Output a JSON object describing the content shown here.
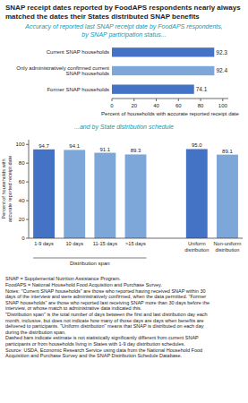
{
  "chart_data": [
    {
      "type": "bar",
      "orientation": "horizontal",
      "title": "SNAP receipt dates reported by FoodAPS respondents nearly always matched the dates their States distributed SNAP benefits",
      "subtitle": [
        "Accuracy of reported last SNAP receipt date by FoodAPS respondents,",
        "by SNAP participation status..."
      ],
      "categories": [
        "Current SNAP households",
        "Only administratively confirmed current\nSNAP households",
        "Former SNAP households"
      ],
      "values": [
        92.3,
        92.4,
        74.1
      ],
      "colors": [
        "#4472c4",
        "#7da6d9",
        "#4472c4"
      ],
      "xlabel": "Percent of households with accurate reported receipt date",
      "xlim": [
        0,
        105
      ],
      "xticks": [
        0,
        20,
        40,
        60,
        80,
        100
      ],
      "data_labels": true
    },
    {
      "type": "bar",
      "subtitle": "...and by State distribution schedule",
      "categories": [
        "1-9 days",
        "10 days",
        "11-15 days",
        ">15 days",
        "Uniform\ndistribution",
        "Non-uniform\ndistribution"
      ],
      "values": [
        94.7,
        94.1,
        91.1,
        89.3,
        95.0,
        89.1
      ],
      "value_labels": [
        "94.7",
        "94.1",
        "91.1",
        "89.3",
        "95.0",
        "89.1"
      ],
      "colors": [
        "#4472c4",
        "#7da6d9",
        "#7da6d9",
        "#7da6d9",
        "#4472c4",
        "#7da6d9"
      ],
      "ylabel": "Percent of households with accurate reported receipt date",
      "ylim": [
        0,
        105
      ],
      "yticks": [
        0,
        20,
        40,
        60,
        80,
        100
      ],
      "data_labels": true,
      "annotations": [
        "Distribution span"
      ],
      "footnote": "SNAP = Supplemental Nutrition Assistance Program.\nFoodAPS = National Household Food Acquisition and Purchase Survey.\nNotes: \"Current SNAP households\" are those who reported having received SNAP within 30\ndays of the interview and were administratively confirmed, when the data permitted. \"Former\nSNAP households\" are those who reported last receiving SNAP more than 30 days before the\ninterview, or whose match to administrative data indicated this.\n\"Distribution span\" is the total number of days between the first and last distribution day each\nmonth, inclusive, but does not indicate how many of those days are days when benefits are\ndelivered to participants. \"Uniform distribution\" means that SNAP is distributed on each day\nduring the distribution span.\nDashed bars indicate estimate is not statistically significantly different from current SNAP\nparticipants or from households living in States with 1-9 day distribution schedules.\nSource: USDA, Economic Research Service using data from the National Household Food\nAcquisition and Purchase Survey and the SNAP Distribution Schedule Database."
    }
  ]
}
